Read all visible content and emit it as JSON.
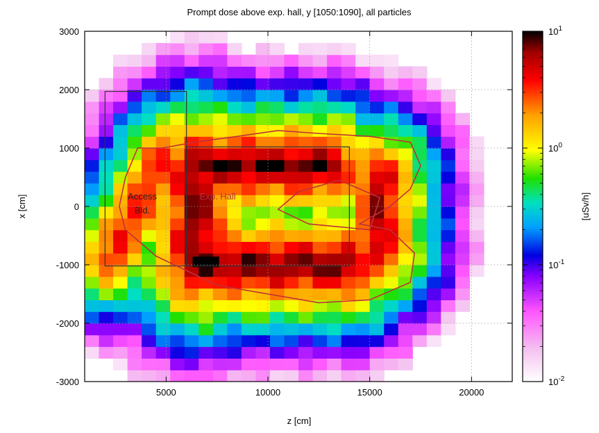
{
  "chart_data": {
    "type": "heatmap",
    "title": "Prompt dose above exp. hall, y [1050:1090], all particles",
    "xlabel": "z [cm]",
    "ylabel": "x [cm]",
    "colorbar_label": "[uSv/h]",
    "colorbar_scale": "log",
    "colorbar_range": [
      0.01,
      10
    ],
    "colorbar_ticks": [
      {
        "base": "10",
        "exp": "1",
        "value": 10
      },
      {
        "base": "10",
        "exp": "0",
        "value": 1
      },
      {
        "base": "10",
        "exp": "-1",
        "value": 0.1
      },
      {
        "base": "10",
        "exp": "-2",
        "value": 0.01
      }
    ],
    "xlim": [
      1000,
      22000
    ],
    "ylim": [
      -3000,
      3000
    ],
    "xticks": [
      5000,
      10000,
      15000,
      20000
    ],
    "xtick_labels": [
      "5000",
      "10000",
      "15000",
      "20000"
    ],
    "yticks": [
      3000,
      2000,
      1000,
      0,
      -1000,
      -2000,
      -3000
    ],
    "ytick_labels": [
      "3000",
      "2000",
      "1000",
      "0",
      "-1000",
      "-2000",
      "-3000"
    ],
    "grid": true,
    "bin_size": {
      "z": 700,
      "x": 200
    },
    "regions": [
      {
        "label_lines": [
          "Access",
          "Bld."
        ],
        "z_range": [
          2000,
          6000
        ],
        "x_range": [
          -1020,
          1970
        ]
      },
      {
        "label_lines": [
          "Exp. Hall"
        ],
        "z_range": [
          6000,
          14000
        ],
        "x_range": [
          -1020,
          1020
        ]
      }
    ],
    "contour_level": 1,
    "contour_color": "#c0303a",
    "box_color": "#333333",
    "colormap": [
      "#ffffff",
      "#f4c3f0",
      "#ff55ff",
      "#8800ff",
      "#0000e0",
      "#00a0ff",
      "#00e0c0",
      "#20e000",
      "#ffff00",
      "#ffa000",
      "#ff0000",
      "#a00000",
      "#000000"
    ]
  }
}
